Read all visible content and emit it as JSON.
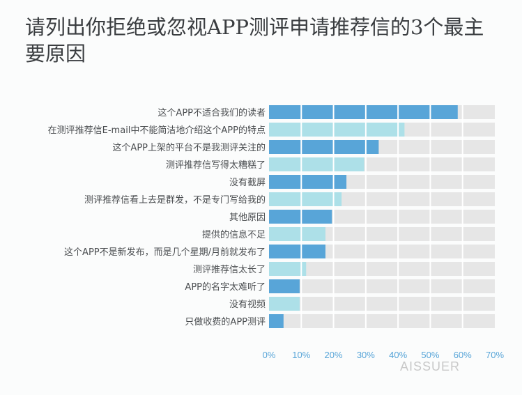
{
  "title": "请列出你拒绝或忽视APP测评申请推荐信的3个最主要原因",
  "watermark": {
    "logo_text": "AISSUER"
  },
  "colors": {
    "dark": "#58a5d8",
    "light": "#ade0e8",
    "track": "#e6e6e6",
    "axis_text": "#58a5d8",
    "label_text": "#4a4d50"
  },
  "chart_data": {
    "type": "bar",
    "orientation": "horizontal",
    "categories": [
      "这个APP不适合我们的读者",
      "在测评推荐信E-mail中不能简洁地介绍这个APP的特点",
      "这个APP上架的平台不是我测评关注的",
      "测评推荐信写得太糟糕了",
      "没有截屏",
      "测评推荐信看上去是群发，不是专门写给我的",
      "其他原因",
      "提供的信息不足",
      "这个APP不是新发布，而是几个星期/月前就发布了",
      "测评推荐信太长了",
      "APP的名字太难听了",
      "没有视频",
      "只做收费的APP测评"
    ],
    "values": [
      58.5,
      42,
      34,
      29.5,
      24,
      22.5,
      19.5,
      17.5,
      17.5,
      11.5,
      9.5,
      9.5,
      4.5
    ],
    "bar_shade": [
      "dark",
      "light",
      "dark",
      "light",
      "dark",
      "light",
      "dark",
      "light",
      "dark",
      "light",
      "dark",
      "light",
      "dark"
    ],
    "xlim": [
      0,
      70
    ],
    "xticks": [
      0,
      10,
      20,
      30,
      40,
      50,
      60,
      70
    ],
    "xtick_labels": [
      "0%",
      "10%",
      "20%",
      "30%",
      "40%",
      "50%",
      "60%",
      "70%"
    ],
    "grid": true
  }
}
